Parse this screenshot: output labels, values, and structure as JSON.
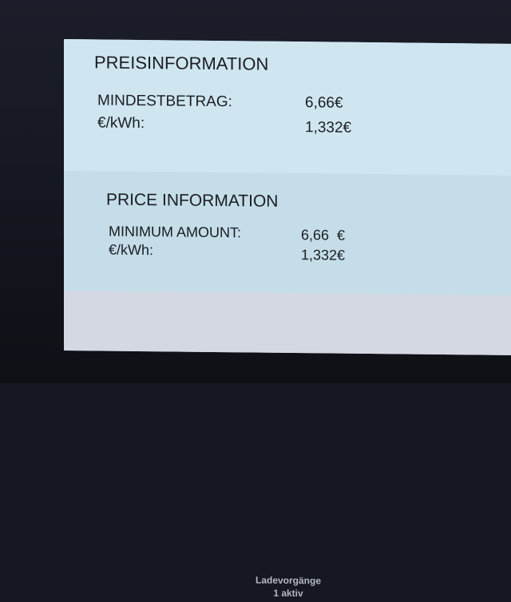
{
  "de": {
    "title": "PREISINFORMATION",
    "min_label": "MINDESTBETRAG:",
    "min_value": "6,66€",
    "kwh_label": "€/kWh:",
    "kwh_value": "1,332€"
  },
  "en": {
    "title": "PRICE INFORMATION",
    "min_label": "MINIMUM AMOUNT:",
    "min_value": "6,66  €",
    "kwh_label": "€/kWh:",
    "kwh_value": "1,332€"
  },
  "footer": {
    "line1": "Ladevorgänge",
    "line2": "1 aktiv"
  }
}
